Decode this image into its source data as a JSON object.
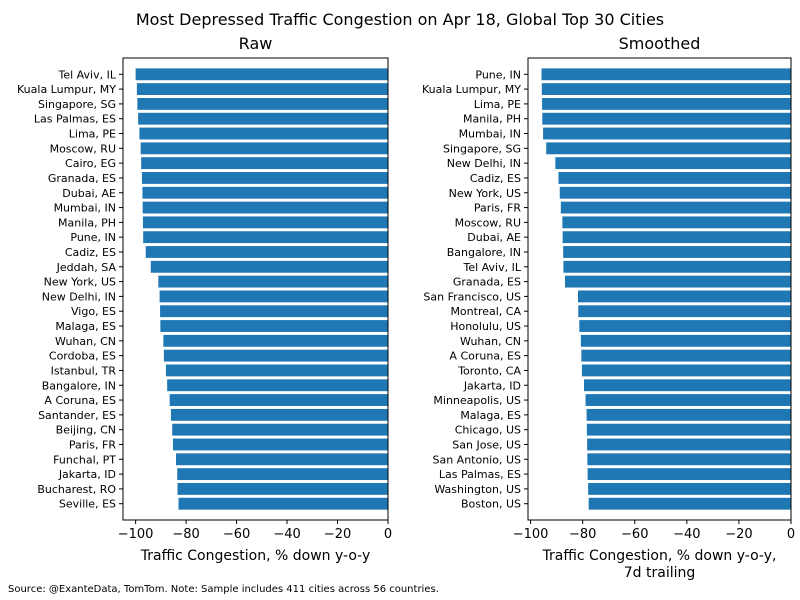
{
  "figure": {
    "title": "Most Depressed Traffic Congestion on Apr 18, Global Top 30 Cities",
    "footnote": "Source: @ExanteData, TomTom.   Note: Sample includes 411 cities across 56 countries."
  },
  "colors": {
    "bar": "#1f77b4",
    "axis": "#000000",
    "text": "#000000"
  },
  "chart_data": [
    {
      "type": "bar",
      "orientation": "horizontal",
      "title": "Raw",
      "xlabel": "Traffic Congestion, % down y-o-y",
      "ylabel": "",
      "xlim": [
        -105,
        0
      ],
      "xticks": [
        -100,
        -80,
        -60,
        -40,
        -20,
        0
      ],
      "xtick_labels": [
        "−100",
        "−80",
        "−60",
        "−40",
        "−20",
        "0"
      ],
      "grid": false,
      "categories": [
        "Tel Aviv, IL",
        "Kuala Lumpur, MY",
        "Singapore, SG",
        "Las Palmas, ES",
        "Lima, PE",
        "Moscow, RU",
        "Cairo, EG",
        "Granada, ES",
        "Dubai, AE",
        "Mumbai, IN",
        "Manila, PH",
        "Pune, IN",
        "Cadiz, ES",
        "Jeddah, SA",
        "New York, US",
        "New Delhi, IN",
        "Vigo, ES",
        "Malaga, ES",
        "Wuhan, CN",
        "Cordoba, ES",
        "Istanbul, TR",
        "Bangalore, IN",
        "A Coruna, ES",
        "Santander, ES",
        "Beijing, CN",
        "Paris, FR",
        "Funchal, PT",
        "Jakarta, ID",
        "Bucharest, RO",
        "Seville, ES"
      ],
      "values": [
        -100,
        -99.5,
        -99.3,
        -99,
        -98.5,
        -98,
        -97.8,
        -97.5,
        -97.3,
        -97.2,
        -97.1,
        -97,
        -96,
        -94,
        -91,
        -90.5,
        -90.3,
        -90.2,
        -89,
        -88.8,
        -88,
        -87.5,
        -86.5,
        -86,
        -85.5,
        -85.2,
        -84,
        -83.5,
        -83.4,
        -83
      ]
    },
    {
      "type": "bar",
      "orientation": "horizontal",
      "title": "Smoothed",
      "xlabel": "Traffic Congestion, % down y-o-y,\n7d trailing",
      "ylabel": "",
      "xlim": [
        -101,
        0
      ],
      "xticks": [
        -100,
        -80,
        -60,
        -40,
        -20,
        0
      ],
      "xtick_labels": [
        "−100",
        "−80",
        "−60",
        "−40",
        "−20",
        "0"
      ],
      "grid": false,
      "categories": [
        "Pune, IN",
        "Kuala Lumpur, MY",
        "Lima, PE",
        "Manila, PH",
        "Mumbai, IN",
        "Singapore, SG",
        "New Delhi, IN",
        "Cadiz, ES",
        "New York, US",
        "Paris, FR",
        "Moscow, RU",
        "Dubai, AE",
        "Bangalore, IN",
        "Tel Aviv, IL",
        "Granada, ES",
        "San Francisco, US",
        "Montreal, CA",
        "Honolulu, US",
        "Wuhan, CN",
        "A Coruna, ES",
        "Toronto, CA",
        "Jakarta, ID",
        "Minneapolis, US",
        "Malaga, ES",
        "Chicago, US",
        "San Jose, US",
        "San Antonio, US",
        "Las Palmas, ES",
        "Washington, US",
        "Boston, US"
      ],
      "values": [
        -95.8,
        -95.7,
        -95.6,
        -95.5,
        -95.2,
        -94,
        -90.5,
        -89.3,
        -88.8,
        -88.4,
        -87.8,
        -87.7,
        -87.5,
        -87.4,
        -86.8,
        -81.8,
        -81.7,
        -81.3,
        -80.7,
        -80.5,
        -80.3,
        -79.5,
        -78.9,
        -78.5,
        -78.4,
        -78.3,
        -78.2,
        -78.1,
        -77.9,
        -77.7
      ]
    }
  ]
}
